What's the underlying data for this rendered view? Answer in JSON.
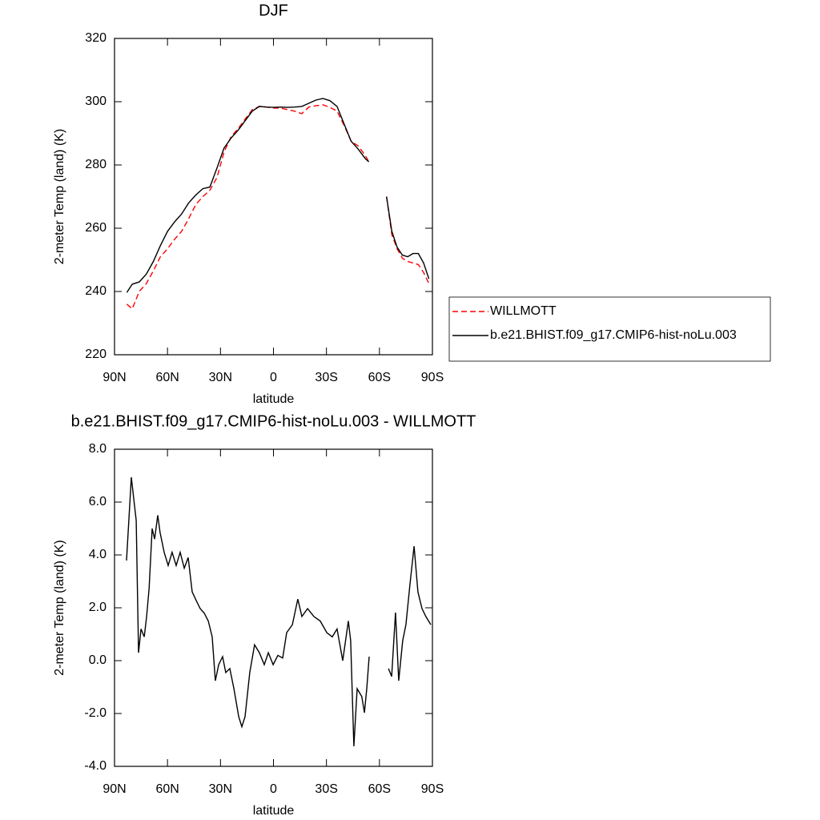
{
  "chart_data": [
    {
      "type": "line",
      "title": "DJF",
      "xlabel": "latitude",
      "ylabel": "2-meter Temp (land) (K)",
      "x": [
        83,
        80,
        76,
        72,
        68,
        64,
        60,
        56,
        52,
        48,
        44,
        40,
        36,
        32,
        28,
        24,
        20,
        16,
        12,
        8,
        4,
        0,
        -4,
        -8,
        -12,
        -16,
        -20,
        -24,
        -28,
        -32,
        -36,
        -40,
        -44,
        -48,
        -52,
        -54,
        -59,
        -64,
        -67,
        -70,
        -73,
        -76,
        -79,
        -82,
        -85,
        -88
      ],
      "series": [
        {
          "name": "WILLMOTT",
          "color": "#ff0000",
          "dashed": true,
          "values": [
            236,
            234.5,
            240,
            242.5,
            246.5,
            251,
            253.5,
            256.5,
            259,
            263,
            267.5,
            270,
            272,
            276,
            284,
            289,
            291.5,
            294.5,
            297.5,
            298.5,
            298.3,
            298,
            298,
            297.5,
            297,
            296.2,
            298.3,
            298.7,
            299,
            298.2,
            297,
            292.5,
            287.5,
            286,
            283,
            281,
            null,
            270,
            258,
            253.5,
            250.5,
            249.5,
            249,
            248.5,
            246,
            242.5
          ]
        },
        {
          "name": "b.e21.BHIST.f09_g17.CMIP6-hist-noLu.003",
          "color": "#000000",
          "dashed": false,
          "values": [
            239.7,
            242.3,
            243,
            245.5,
            249.5,
            254.5,
            259,
            262,
            264.5,
            268,
            270.5,
            272.5,
            273,
            279,
            285.3,
            288.5,
            291,
            294,
            297,
            298.5,
            298.3,
            298.2,
            298.3,
            298.2,
            298.3,
            298.5,
            299.5,
            300.5,
            301,
            300.3,
            298.5,
            293,
            287.5,
            285,
            282,
            281,
            null,
            270,
            259,
            254,
            251.5,
            251,
            252,
            252,
            249,
            244
          ]
        }
      ],
      "xlim": [
        90,
        -90
      ],
      "ylim": [
        220,
        320
      ],
      "xticks": [
        {
          "value": 90,
          "label": "90N"
        },
        {
          "value": 60,
          "label": "60N"
        },
        {
          "value": 30,
          "label": "30N"
        },
        0,
        {
          "value": -30,
          "label": "30S"
        },
        {
          "value": -60,
          "label": "60S"
        },
        {
          "value": -90,
          "label": "90S"
        }
      ],
      "yticks": [
        220,
        240,
        260,
        280,
        300,
        320
      ],
      "legend": "right"
    },
    {
      "type": "line",
      "title": "b.e21.BHIST.f09_g17.CMIP6-hist-noLu.003 - WILLMOTT",
      "xlabel": "latitude",
      "ylabel": "2-meter Temp (land) (K)",
      "x": [
        83.2,
        80.5,
        77.7,
        76.4,
        75,
        73.2,
        71.8,
        70.4,
        68.7,
        67.3,
        65.5,
        64.2,
        61.9,
        59.6,
        57.4,
        55.1,
        52.8,
        50.5,
        48.3,
        46,
        43.7,
        41.5,
        39.2,
        36.9,
        34.7,
        32.9,
        31,
        28.8,
        27,
        24.7,
        22.4,
        19.7,
        17.9,
        16.1,
        13.4,
        10.7,
        8,
        5.2,
        2.9,
        0.2,
        -2.5,
        -5.2,
        -7.5,
        -10.7,
        -13.8,
        -16.1,
        -19.3,
        -22.9,
        -26.5,
        -30.2,
        -33.3,
        -36,
        -39.2,
        -42.4,
        -43.7,
        -45.5,
        -47.4,
        -50,
        -51.5,
        -52.8,
        -54.2,
        -60,
        -65.1,
        -66.9,
        -69.1,
        -70.9,
        -73.2,
        -75,
        -77.3,
        -79.6,
        -81.8,
        -84.1,
        -86.3,
        -89.1
      ],
      "values": [
        3.79,
        6.94,
        5.3,
        0.3,
        1.2,
        0.9,
        1.67,
        2.73,
        5,
        4.6,
        5.5,
        4.85,
        4.1,
        3.6,
        4.1,
        3.6,
        4.1,
        3.5,
        3.9,
        2.6,
        2.27,
        1.97,
        1.8,
        1.5,
        0.9,
        -0.76,
        -0.15,
        0.15,
        -0.45,
        -0.3,
        -1.06,
        -2.12,
        -2.5,
        -2.12,
        -0.45,
        0.6,
        0.3,
        -0.15,
        0.3,
        -0.15,
        0.2,
        0.1,
        1.06,
        1.36,
        2.33,
        1.67,
        1.97,
        1.67,
        1.5,
        1.06,
        0.9,
        1.2,
        0.0,
        1.5,
        0.76,
        -3.24,
        -1.06,
        -1.36,
        -1.97,
        -1.06,
        0.15,
        null,
        -0.3,
        -0.6,
        1.82,
        -0.76,
        0.76,
        1.36,
        2.9,
        4.33,
        2.6,
        1.97,
        1.67,
        1.36
      ],
      "color": "#000000",
      "xlim": [
        90,
        -90
      ],
      "ylim": [
        -4,
        8
      ],
      "xticks": [
        {
          "value": 90,
          "label": "90N"
        },
        {
          "value": 60,
          "label": "60N"
        },
        {
          "value": 30,
          "label": "30N"
        },
        0,
        {
          "value": -30,
          "label": "30S"
        },
        {
          "value": -60,
          "label": "60S"
        },
        {
          "value": -90,
          "label": "90S"
        }
      ],
      "yticks": [
        {
          "value": -4,
          "label": "-4.0"
        },
        {
          "value": -2,
          "label": "-2.0"
        },
        {
          "value": 0,
          "label": "0.0"
        },
        {
          "value": 2,
          "label": "2.0"
        },
        {
          "value": 4,
          "label": "4.0"
        },
        {
          "value": 6,
          "label": "6.0"
        },
        {
          "value": 8,
          "label": "8.0"
        }
      ]
    }
  ]
}
